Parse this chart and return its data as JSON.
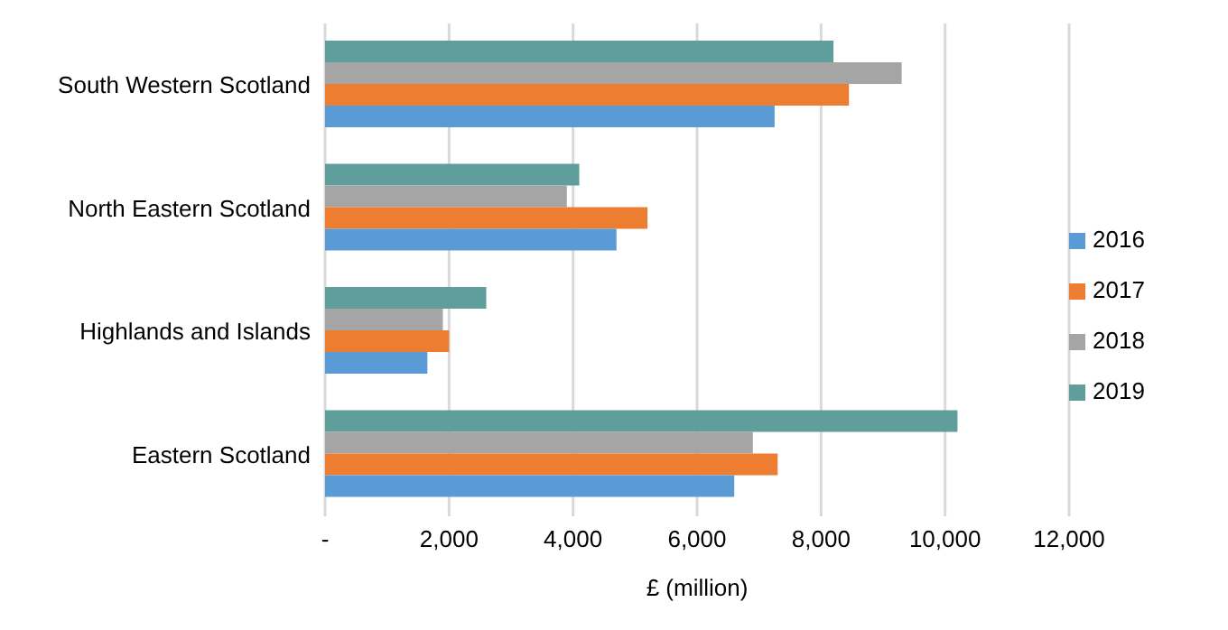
{
  "chart_data": {
    "type": "bar",
    "orientation": "horizontal",
    "xlabel": "£ (million)",
    "categories": [
      "South Western Scotland",
      "North Eastern Scotland",
      "Highlands and Islands",
      "Eastern Scotland"
    ],
    "series": [
      {
        "name": "2019",
        "color": "#5f9e9a",
        "values": [
          8200,
          4100,
          2600,
          10200
        ]
      },
      {
        "name": "2018",
        "color": "#a5a5a5",
        "values": [
          9300,
          3900,
          1900,
          6900
        ]
      },
      {
        "name": "2017",
        "color": "#ed7d31",
        "values": [
          8450,
          5200,
          2000,
          7300
        ]
      },
      {
        "name": "2016",
        "color": "#5b9bd5",
        "values": [
          7250,
          4700,
          1650,
          6600
        ]
      }
    ],
    "xlim": [
      0,
      12000
    ],
    "xticks": [
      {
        "value": 0,
        "label": "-"
      },
      {
        "value": 2000,
        "label": "2,000"
      },
      {
        "value": 4000,
        "label": "4,000"
      },
      {
        "value": 6000,
        "label": "6,000"
      },
      {
        "value": 8000,
        "label": "8,000"
      },
      {
        "value": 10000,
        "label": "10,000"
      },
      {
        "value": 12000,
        "label": "12,000"
      }
    ],
    "grid": "x",
    "legend": "right"
  }
}
